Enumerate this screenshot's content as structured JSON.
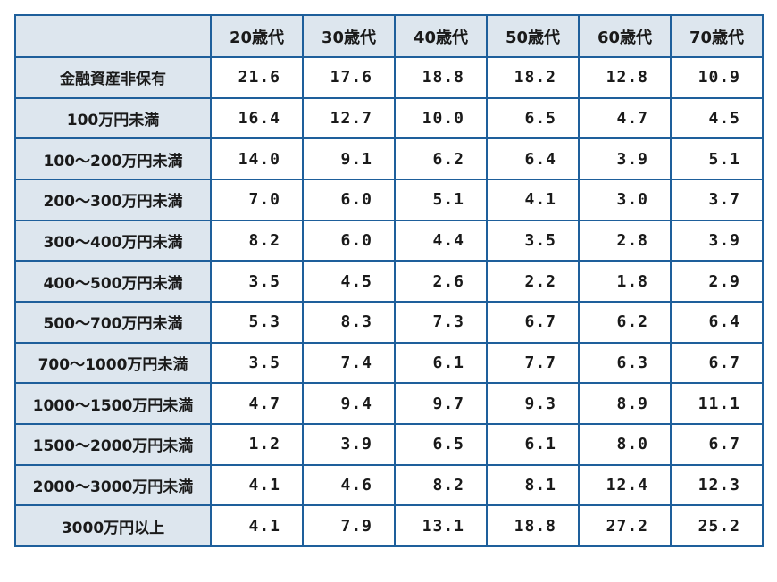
{
  "table": {
    "corner": "",
    "headers": [
      "20歳代",
      "30歳代",
      "40歳代",
      "50歳代",
      "60歳代",
      "70歳代"
    ],
    "rows": [
      {
        "label": "金融資産非保有",
        "values": [
          "21.6",
          "17.6",
          "18.8",
          "18.2",
          "12.8",
          "10.9"
        ]
      },
      {
        "label": "100万円未満",
        "values": [
          "16.4",
          "12.7",
          "10.0",
          "6.5",
          "4.7",
          "4.5"
        ]
      },
      {
        "label": "100〜200万円未満",
        "values": [
          "14.0",
          "9.1",
          "6.2",
          "6.4",
          "3.9",
          "5.1"
        ]
      },
      {
        "label": "200〜300万円未満",
        "values": [
          "7.0",
          "6.0",
          "5.1",
          "4.1",
          "3.0",
          "3.7"
        ]
      },
      {
        "label": "300〜400万円未満",
        "values": [
          "8.2",
          "6.0",
          "4.4",
          "3.5",
          "2.8",
          "3.9"
        ]
      },
      {
        "label": "400〜500万円未満",
        "values": [
          "3.5",
          "4.5",
          "2.6",
          "2.2",
          "1.8",
          "2.9"
        ]
      },
      {
        "label": "500〜700万円未満",
        "values": [
          "5.3",
          "8.3",
          "7.3",
          "6.7",
          "6.2",
          "6.4"
        ]
      },
      {
        "label": "700〜1000万円未満",
        "values": [
          "3.5",
          "7.4",
          "6.1",
          "7.7",
          "6.3",
          "6.7"
        ]
      },
      {
        "label": "1000〜1500万円未満",
        "values": [
          "4.7",
          "9.4",
          "9.7",
          "9.3",
          "8.9",
          "11.1"
        ]
      },
      {
        "label": "1500〜2000万円未満",
        "values": [
          "1.2",
          "3.9",
          "6.5",
          "6.1",
          "8.0",
          "6.7"
        ]
      },
      {
        "label": "2000〜3000万円未満",
        "values": [
          "4.1",
          "4.6",
          "8.2",
          "8.1",
          "12.4",
          "12.3"
        ]
      },
      {
        "label": "3000万円以上",
        "values": [
          "4.1",
          "7.9",
          "13.1",
          "18.8",
          "27.2",
          "25.2"
        ]
      }
    ]
  },
  "colors": {
    "border": "#1e5f9b",
    "header_bg": "#dde6ee",
    "cell_bg": "#ffffff",
    "text": "#1a1a1a"
  }
}
